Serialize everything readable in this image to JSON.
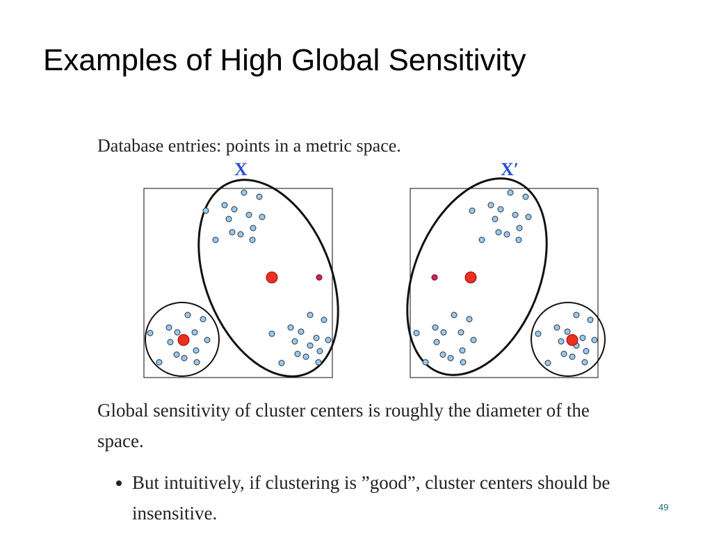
{
  "title": "Examples of High Global Sensitivity",
  "intro": "Database entries: points in a metric space.",
  "diagram": {
    "left_label": "X",
    "right_label": "X′"
  },
  "paragraph": "Global sensitivity of cluster centers is roughly the diameter of the space.",
  "bullets": [
    "But intuitively, if clustering is ”good”, cluster centers should be insensitive."
  ],
  "page_number": "49"
}
